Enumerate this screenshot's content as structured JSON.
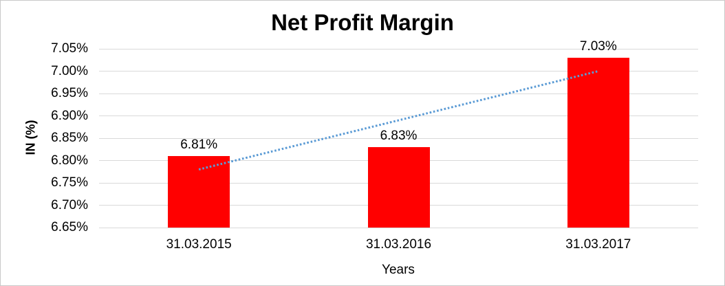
{
  "chart_data": {
    "type": "bar",
    "title": "Net Profit Margin",
    "categories": [
      "31.03.2015",
      "31.03.2016",
      "31.03.2017"
    ],
    "values": [
      6.81,
      6.83,
      7.03
    ],
    "data_labels": [
      "6.81%",
      "6.83%",
      "7.03%"
    ],
    "xlabel": "Years",
    "ylabel": "IN (%)",
    "ylim": [
      6.65,
      7.05
    ],
    "ytick_step": 0.05,
    "ytick_labels": [
      "7.05%",
      "7.00%",
      "6.95%",
      "6.90%",
      "6.85%",
      "6.80%",
      "6.75%",
      "6.70%",
      "6.65%"
    ],
    "grid": true,
    "legend": "none",
    "trendline": {
      "type": "linear",
      "style": "dotted",
      "start_value": 6.78,
      "end_value": 7.0
    },
    "colors": {
      "bar": "#ff0000",
      "trendline": "#5b9bd5",
      "gridline": "#d9d9d9",
      "text": "#000000",
      "border": "#c9c9c9",
      "background": "#ffffff"
    }
  }
}
